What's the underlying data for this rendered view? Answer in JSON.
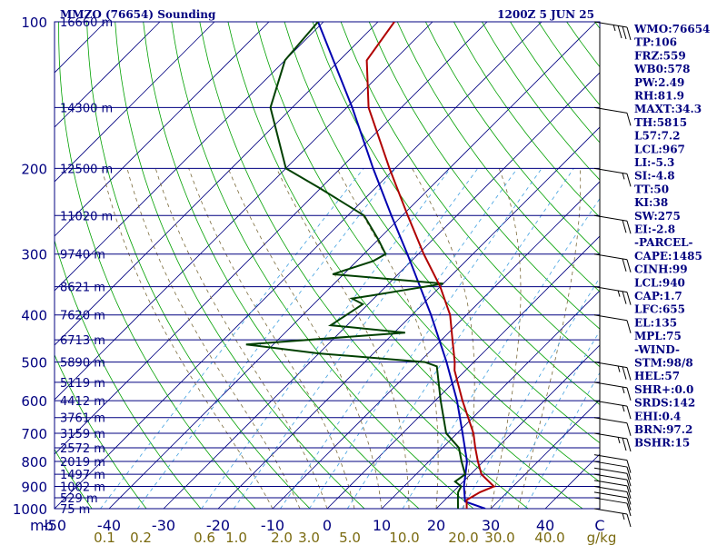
{
  "title_left": "MMZO (76654) Sounding",
  "title_right": "1200Z  5 JUN 25",
  "colors": {
    "frame": "#000080",
    "temperature": "#b00000",
    "dewpoint": "#004000",
    "parcel": "#0000b0",
    "dry_adiabat": "#00a000",
    "moist_adiabat": "#7a6a3a",
    "mixing_ratio": "#40a0e0",
    "mixing_ratio_label": "#7a6a10"
  },
  "chart_data": {
    "type": "skew-t",
    "pressure_axis_label": "mb",
    "temp_axis_label": "C",
    "mixing_ratio_unit": "g/kg",
    "pressure_levels": [
      100,
      200,
      300,
      400,
      500,
      600,
      700,
      800,
      900,
      1000
    ],
    "temperature_ticks": [
      -50,
      -40,
      -30,
      -20,
      -10,
      0,
      10,
      20,
      30,
      40
    ],
    "mixing_ratio_labels": [
      "0.1",
      "0.2",
      "0.6",
      "1.0",
      "2.0",
      "3.0",
      "5.0",
      "10.0",
      "20.0",
      "30.0",
      "40.0"
    ],
    "height_labels": [
      {
        "p": 100,
        "text": "16660 m"
      },
      {
        "p": 150,
        "text": "14300 m"
      },
      {
        "p": 200,
        "text": "12500 m"
      },
      {
        "p": 250,
        "text": "11020 m"
      },
      {
        "p": 300,
        "text": "9740 m"
      },
      {
        "p": 350,
        "text": "8621 m"
      },
      {
        "p": 400,
        "text": "7620 m"
      },
      {
        "p": 450,
        "text": "6713 m"
      },
      {
        "p": 500,
        "text": "5890 m"
      },
      {
        "p": 550,
        "text": "5119 m"
      },
      {
        "p": 600,
        "text": "4412 m"
      },
      {
        "p": 650,
        "text": "3761 m"
      },
      {
        "p": 700,
        "text": "3159 m"
      },
      {
        "p": 750,
        "text": "2572 m"
      },
      {
        "p": 800,
        "text": "2019 m"
      },
      {
        "p": 850,
        "text": "1497 m"
      },
      {
        "p": 900,
        "text": "1002 m"
      },
      {
        "p": 950,
        "text": "529 m"
      },
      {
        "p": 1000,
        "text": "75 m"
      }
    ],
    "temperature_profile": [
      {
        "p": 1000,
        "t": 25.6
      },
      {
        "p": 960,
        "t": 24.0
      },
      {
        "p": 925,
        "t": 25.0
      },
      {
        "p": 900,
        "t": 26.5
      },
      {
        "p": 850,
        "t": 22.0
      },
      {
        "p": 800,
        "t": 19.0
      },
      {
        "p": 750,
        "t": 16.0
      },
      {
        "p": 700,
        "t": 13.0
      },
      {
        "p": 600,
        "t": 5.0
      },
      {
        "p": 520,
        "t": -2.0
      },
      {
        "p": 500,
        "t": -3.5
      },
      {
        "p": 450,
        "t": -8.0
      },
      {
        "p": 400,
        "t": -13.0
      },
      {
        "p": 350,
        "t": -20.0
      },
      {
        "p": 300,
        "t": -29.0
      },
      {
        "p": 250,
        "t": -39.0
      },
      {
        "p": 200,
        "t": -51.0
      },
      {
        "p": 150,
        "t": -66.0
      },
      {
        "p": 120,
        "t": -75.0
      },
      {
        "p": 100,
        "t": -77.0
      }
    ],
    "dewpoint_profile": [
      {
        "p": 1000,
        "t": 24.0
      },
      {
        "p": 950,
        "t": 22.0
      },
      {
        "p": 925,
        "t": 21.0
      },
      {
        "p": 900,
        "t": 20.5
      },
      {
        "p": 880,
        "t": 18.5
      },
      {
        "p": 850,
        "t": 19.0
      },
      {
        "p": 800,
        "t": 16.0
      },
      {
        "p": 750,
        "t": 13.0
      },
      {
        "p": 700,
        "t": 8.0
      },
      {
        "p": 600,
        "t": 1.0
      },
      {
        "p": 510,
        "t": -6.0
      },
      {
        "p": 500,
        "t": -9.0
      },
      {
        "p": 480,
        "t": -30.0
      },
      {
        "p": 460,
        "t": -45.0
      },
      {
        "p": 435,
        "t": -18.0
      },
      {
        "p": 420,
        "t": -33.0
      },
      {
        "p": 400,
        "t": -32.0
      },
      {
        "p": 380,
        "t": -31.0
      },
      {
        "p": 370,
        "t": -34.0
      },
      {
        "p": 365,
        "t": -31.0
      },
      {
        "p": 345,
        "t": -20.0
      },
      {
        "p": 330,
        "t": -42.0
      },
      {
        "p": 310,
        "t": -37.0
      },
      {
        "p": 300,
        "t": -36.0
      },
      {
        "p": 280,
        "t": -40.0
      },
      {
        "p": 250,
        "t": -47.0
      },
      {
        "p": 220,
        "t": -60.0
      },
      {
        "p": 200,
        "t": -70.0
      },
      {
        "p": 150,
        "t": -84.0
      },
      {
        "p": 120,
        "t": -90.0
      },
      {
        "p": 100,
        "t": -91.0
      }
    ],
    "parcel_profile": [
      {
        "p": 1000,
        "t": 29.0
      },
      {
        "p": 967,
        "t": 24.0
      },
      {
        "p": 900,
        "t": 21.0
      },
      {
        "p": 800,
        "t": 17.0
      },
      {
        "p": 700,
        "t": 11.0
      },
      {
        "p": 600,
        "t": 4.0
      },
      {
        "p": 500,
        "t": -5.0
      },
      {
        "p": 400,
        "t": -16.5
      },
      {
        "p": 300,
        "t": -32.0
      },
      {
        "p": 250,
        "t": -42.0
      },
      {
        "p": 200,
        "t": -54.0
      },
      {
        "p": 150,
        "t": -69.0
      },
      {
        "p": 100,
        "t": -91.0
      }
    ],
    "wind_barbs": [
      {
        "p": 1000,
        "spd": 5
      },
      {
        "p": 950,
        "spd": 10
      },
      {
        "p": 925,
        "spd": 10
      },
      {
        "p": 900,
        "spd": 10
      },
      {
        "p": 875,
        "spd": 10
      },
      {
        "p": 850,
        "spd": 10
      },
      {
        "p": 825,
        "spd": 10
      },
      {
        "p": 800,
        "spd": 10
      },
      {
        "p": 775,
        "spd": 10
      },
      {
        "p": 700,
        "spd": 15
      },
      {
        "p": 650,
        "spd": 10
      },
      {
        "p": 600,
        "spd": 5
      },
      {
        "p": 550,
        "spd": 5
      },
      {
        "p": 500,
        "spd": 15
      },
      {
        "p": 400,
        "spd": 10
      },
      {
        "p": 350,
        "spd": 15
      },
      {
        "p": 300,
        "spd": 20
      },
      {
        "p": 250,
        "spd": 20
      },
      {
        "p": 200,
        "spd": 5
      },
      {
        "p": 150,
        "spd": 10
      },
      {
        "p": 100,
        "spd": 25
      }
    ]
  },
  "indices": [
    "WMO:76654",
    "TP:106",
    "FRZ:559",
    "WB0:578",
    "PW:2.49",
    "RH:81.9",
    "MAXT:34.3",
    "TH:5815",
    "L57:7.2",
    "LCL:967",
    "LI:-5.3",
    "SI:-4.8",
    "TT:50",
    "KI:38",
    "SW:275",
    "EI:-2.8",
    "-PARCEL-",
    "CAPE:1485",
    "CINH:99",
    "LCL:940",
    "CAP:1.7",
    "LFC:655",
    "EL:135",
    "MPL:75",
    "-WIND-",
    "STM:98/8",
    "HEL:57",
    "SHR+:0.0",
    "SRDS:142",
    "EHI:0.4",
    "BRN:97.2",
    "BSHR:15"
  ]
}
